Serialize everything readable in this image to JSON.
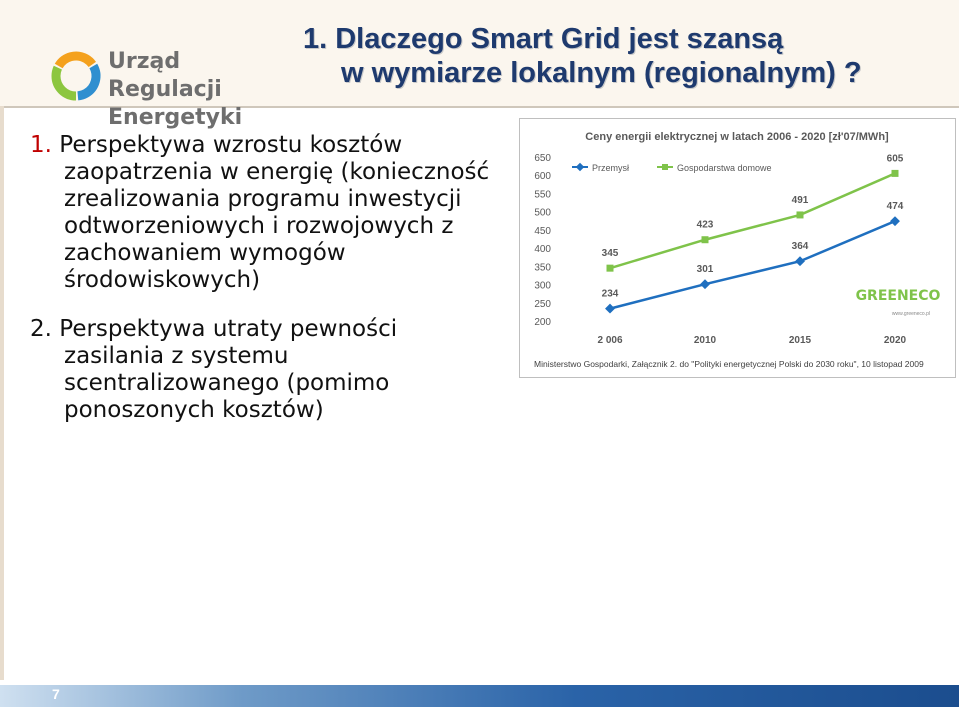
{
  "header": {
    "logo_line1": "Urząd Regulacji",
    "logo_line2": "Energetyki",
    "title_line1": "1. Dlaczego Smart Grid jest szansą",
    "title_line2": "w wymiarze lokalnym (regionalnym) ?"
  },
  "content": {
    "point1_num": "1.",
    "point1_text": "Perspektywa wzrostu kosztów zaopatrzenia w energię (konieczność zrealizowania programu inwestycji odtworzeniowych i rozwojowych z zachowaniem wymogów środowiskowych)",
    "point2_num": "2.",
    "point2_text": "Perspektywa utraty pewności zasilania z systemu scentralizowanego (pomimo ponoszonych kosztów)"
  },
  "chart_data": {
    "type": "line",
    "title": "Ceny energii elektrycznej w latach 2006 - 2020 [zł'07/MWh]",
    "categories": [
      "2 006",
      "2010",
      "2015",
      "2020"
    ],
    "series": [
      {
        "name": "Przemysł",
        "values": [
          234,
          301,
          364,
          474
        ],
        "color": "#1f6fbf"
      },
      {
        "name": "Gospodarstwa domowe",
        "values": [
          345,
          423,
          491,
          605
        ],
        "color": "#7fc34a"
      }
    ],
    "ylim": [
      200,
      650
    ],
    "yticks": [
      "200",
      "250",
      "300",
      "350",
      "400",
      "450",
      "500",
      "550",
      "600",
      "650"
    ],
    "grid": false,
    "legend": "top-left",
    "source": "Ministerstwo Gospodarki, Załącznik 2. do \"Polityki energetycznej Polski do 2030 roku\", 10 listopad 2009",
    "watermark": "GREENECO",
    "watermark_url": "www.greeneco.pl"
  },
  "footer": {
    "page_number": "7"
  },
  "colors": {
    "title": "#1e3a6e",
    "bullet_number": "#c00000",
    "footer_bar": "#2a63a8"
  }
}
